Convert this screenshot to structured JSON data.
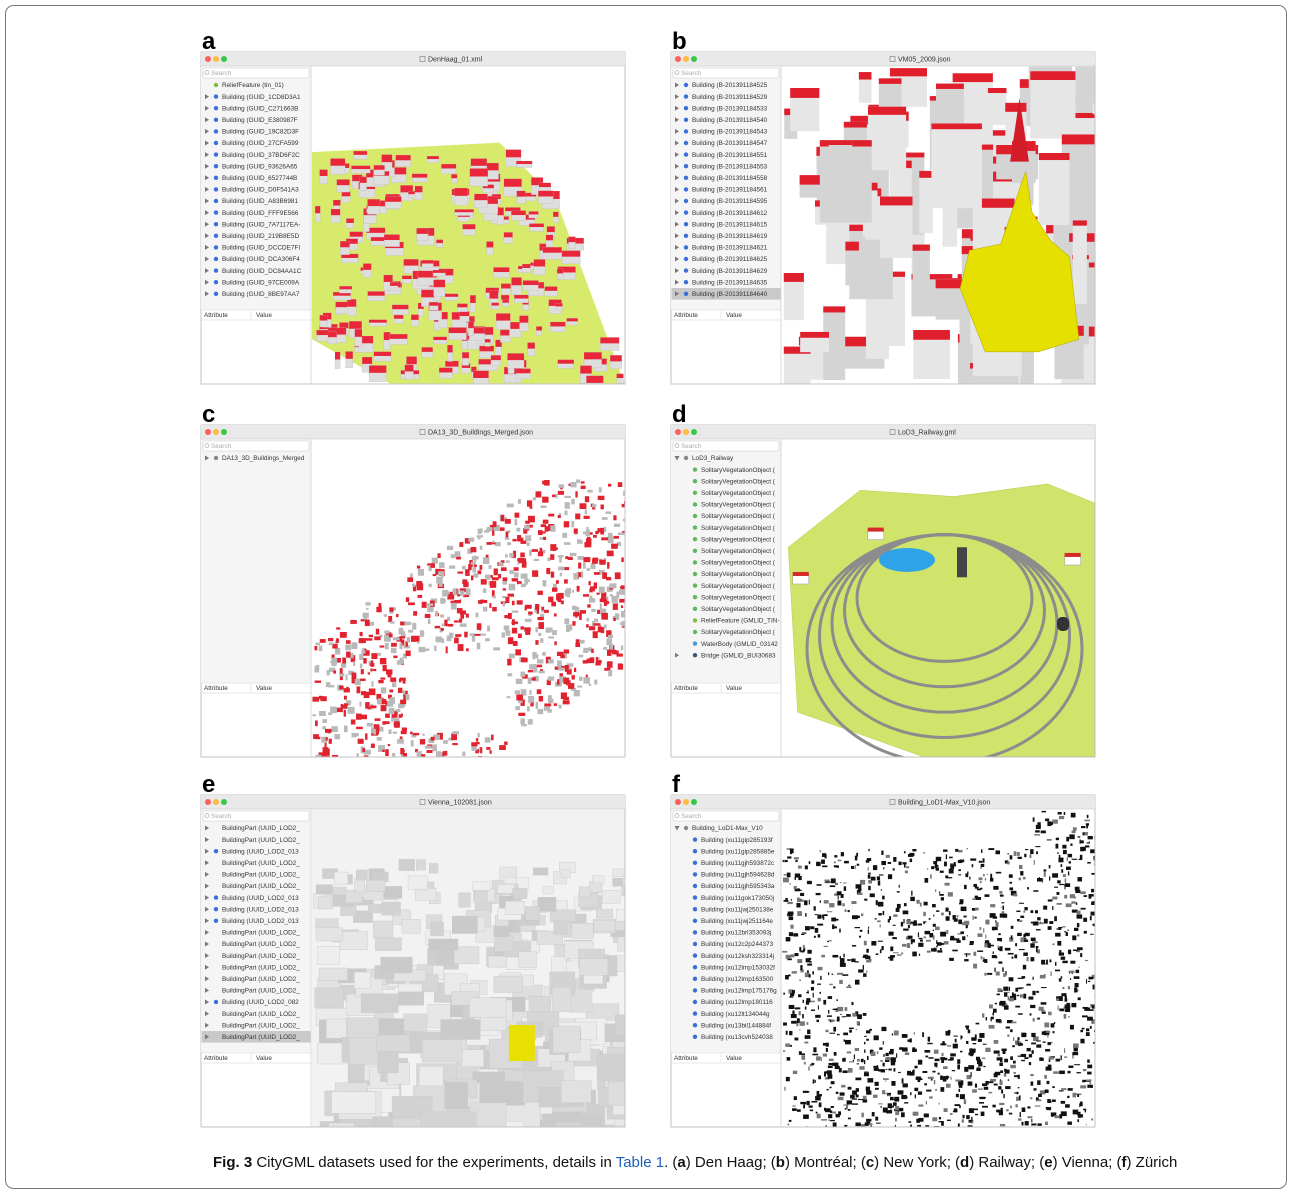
{
  "figure": {
    "panels": [
      {
        "label": "a",
        "window_title": "DenHaag_01.xml",
        "search": "Search",
        "attribute_header": "Attribute",
        "value_header": "Value",
        "tree": [
          {
            "text": "ReliefFeature (tin_01)",
            "icon": "#7bc043"
          },
          {
            "text": "Building (GUID_1CD8D3A1",
            "icon": "#3a6fd8",
            "arrow": "right"
          },
          {
            "text": "Building (GUID_C271663B",
            "icon": "#3a6fd8",
            "arrow": "right"
          },
          {
            "text": "Building (GUID_E380987F",
            "icon": "#3a6fd8",
            "arrow": "right"
          },
          {
            "text": "Building (GUID_19C82D3F",
            "icon": "#3a6fd8",
            "arrow": "right"
          },
          {
            "text": "Building (GUID_27CFA599",
            "icon": "#3a6fd8",
            "arrow": "right"
          },
          {
            "text": "Building (GUID_37BD6F2C",
            "icon": "#3a6fd8",
            "arrow": "right"
          },
          {
            "text": "Building (GUID_93626A65",
            "icon": "#3a6fd8",
            "arrow": "right"
          },
          {
            "text": "Building (GUID_6527744B",
            "icon": "#3a6fd8",
            "arrow": "right"
          },
          {
            "text": "Building (GUID_D0F541A3",
            "icon": "#3a6fd8",
            "arrow": "right"
          },
          {
            "text": "Building (GUID_A83B6981",
            "icon": "#3a6fd8",
            "arrow": "right"
          },
          {
            "text": "Building (GUID_FFF9E566",
            "icon": "#3a6fd8",
            "arrow": "right"
          },
          {
            "text": "Building (GUID_7A7117EA-",
            "icon": "#3a6fd8",
            "arrow": "right"
          },
          {
            "text": "Building (GUID_219B8E5D",
            "icon": "#3a6fd8",
            "arrow": "right"
          },
          {
            "text": "Building (GUID_DCCDE7FI",
            "icon": "#3a6fd8",
            "arrow": "right"
          },
          {
            "text": "Building (GUID_DCA306F4",
            "icon": "#3a6fd8",
            "arrow": "right"
          },
          {
            "text": "Building (GUID_DC84AA1C",
            "icon": "#3a6fd8",
            "arrow": "right"
          },
          {
            "text": "Building (GUID_97CE009A",
            "icon": "#3a6fd8",
            "arrow": "right"
          },
          {
            "text": "Building (GUID_8BE97AA7",
            "icon": "#3a6fd8",
            "arrow": "right"
          }
        ]
      },
      {
        "label": "b",
        "window_title": "VM05_2009.json",
        "search": "Search",
        "attribute_header": "Attribute",
        "value_header": "Value",
        "tree": [
          {
            "text": "Building (B-201391184525",
            "icon": "#3a6fd8",
            "arrow": "right"
          },
          {
            "text": "Building (B-201391184529",
            "icon": "#3a6fd8",
            "arrow": "right"
          },
          {
            "text": "Building (B-201391184533",
            "icon": "#3a6fd8",
            "arrow": "right"
          },
          {
            "text": "Building (B-201391184540",
            "icon": "#3a6fd8",
            "arrow": "right"
          },
          {
            "text": "Building (B-201391184543",
            "icon": "#3a6fd8",
            "arrow": "right"
          },
          {
            "text": "Building (B-201391184547",
            "icon": "#3a6fd8",
            "arrow": "right"
          },
          {
            "text": "Building (B-201391184551",
            "icon": "#3a6fd8",
            "arrow": "right"
          },
          {
            "text": "Building (B-201391184553",
            "icon": "#3a6fd8",
            "arrow": "right"
          },
          {
            "text": "Building (B-201391184558",
            "icon": "#3a6fd8",
            "arrow": "right"
          },
          {
            "text": "Building (B-201391184561",
            "icon": "#3a6fd8",
            "arrow": "right"
          },
          {
            "text": "Building (B-201391184595",
            "icon": "#3a6fd8",
            "arrow": "right"
          },
          {
            "text": "Building (B-201391184612",
            "icon": "#3a6fd8",
            "arrow": "right"
          },
          {
            "text": "Building (B-201391184615",
            "icon": "#3a6fd8",
            "arrow": "right"
          },
          {
            "text": "Building (B-201391184619",
            "icon": "#3a6fd8",
            "arrow": "right"
          },
          {
            "text": "Building (B-201391184621",
            "icon": "#3a6fd8",
            "arrow": "right"
          },
          {
            "text": "Building (B-201391184625",
            "icon": "#3a6fd8",
            "arrow": "right"
          },
          {
            "text": "Building (B-201391184629",
            "icon": "#3a6fd8",
            "arrow": "right"
          },
          {
            "text": "Building (B-201391184635",
            "icon": "#3a6fd8",
            "arrow": "right"
          },
          {
            "text": "Building (B-201391184640",
            "icon": "#3a6fd8",
            "arrow": "right",
            "selected": true
          }
        ]
      },
      {
        "label": "c",
        "window_title": "DA13_3D_Buildings_Merged.json",
        "search": "Search",
        "attribute_header": "Attribute",
        "value_header": "Value",
        "tree": [
          {
            "text": "DA13_3D_Buildings_Merged",
            "icon": "#888888",
            "arrow": "right"
          }
        ]
      },
      {
        "label": "d",
        "window_title": "LoD3_Railway.gml",
        "search": "Search",
        "attribute_header": "Attribute",
        "value_header": "Value",
        "tree": [
          {
            "text": "LoD3_Railway",
            "icon": "#888888",
            "arrow": "down"
          },
          {
            "text": "SolitaryVegetationObject (",
            "icon": "#5cb85c",
            "indent": 1
          },
          {
            "text": "SolitaryVegetationObject (",
            "icon": "#5cb85c",
            "indent": 1
          },
          {
            "text": "SolitaryVegetationObject (",
            "icon": "#5cb85c",
            "indent": 1
          },
          {
            "text": "SolitaryVegetationObject (",
            "icon": "#5cb85c",
            "indent": 1
          },
          {
            "text": "SolitaryVegetationObject (",
            "icon": "#5cb85c",
            "indent": 1
          },
          {
            "text": "SolitaryVegetationObject (",
            "icon": "#5cb85c",
            "indent": 1
          },
          {
            "text": "SolitaryVegetationObject (",
            "icon": "#5cb85c",
            "indent": 1
          },
          {
            "text": "SolitaryVegetationObject (",
            "icon": "#5cb85c",
            "indent": 1
          },
          {
            "text": "SolitaryVegetationObject (",
            "icon": "#5cb85c",
            "indent": 1
          },
          {
            "text": "SolitaryVegetationObject (",
            "icon": "#5cb85c",
            "indent": 1
          },
          {
            "text": "SolitaryVegetationObject (",
            "icon": "#5cb85c",
            "indent": 1
          },
          {
            "text": "SolitaryVegetationObject (",
            "icon": "#5cb85c",
            "indent": 1
          },
          {
            "text": "SolitaryVegetationObject (",
            "icon": "#5cb85c",
            "indent": 1
          },
          {
            "text": "ReliefFeature (GMLID_TIN-",
            "icon": "#7bc043",
            "indent": 1
          },
          {
            "text": "SolitaryVegetationObject (",
            "icon": "#5cb85c",
            "indent": 1
          },
          {
            "text": "WaterBody (GMLID_03142",
            "icon": "#3a9be8",
            "indent": 1
          },
          {
            "text": "Bridge (GMLID_BUI30683",
            "icon": "#445577",
            "arrow": "right",
            "indent": 1
          }
        ]
      },
      {
        "label": "e",
        "window_title": "Vienna_102081.json",
        "search": "Search",
        "attribute_header": "Attribute",
        "value_header": "Value",
        "tree": [
          {
            "text": "BuildingPart (UUID_LOD2_",
            "arrow": "right"
          },
          {
            "text": "BuildingPart (UUID_LOD2_",
            "arrow": "right"
          },
          {
            "text": "Building (UUID_LOD2_013",
            "icon": "#3a6fd8",
            "arrow": "right"
          },
          {
            "text": "BuildingPart (UUID_LOD2_",
            "arrow": "right"
          },
          {
            "text": "BuildingPart (UUID_LOD2_",
            "arrow": "right"
          },
          {
            "text": "BuildingPart (UUID_LOD2_",
            "arrow": "right"
          },
          {
            "text": "Building (UUID_LOD2_013",
            "icon": "#3a6fd8",
            "arrow": "right"
          },
          {
            "text": "Building (UUID_LOD2_013",
            "icon": "#3a6fd8",
            "arrow": "right"
          },
          {
            "text": "Building (UUID_LOD2_013",
            "icon": "#3a6fd8",
            "arrow": "right"
          },
          {
            "text": "BuildingPart (UUID_LOD2_",
            "arrow": "right"
          },
          {
            "text": "BuildingPart (UUID_LOD2_",
            "arrow": "right"
          },
          {
            "text": "BuildingPart (UUID_LOD2_",
            "arrow": "right"
          },
          {
            "text": "BuildingPart (UUID_LOD2_",
            "arrow": "right"
          },
          {
            "text": "BuildingPart (UUID_LOD2_",
            "arrow": "right"
          },
          {
            "text": "BuildingPart (UUID_LOD2_",
            "arrow": "right"
          },
          {
            "text": "Building (UUID_LOD2_082",
            "icon": "#3a6fd8",
            "arrow": "right"
          },
          {
            "text": "BuildingPart (UUID_LOD2_",
            "arrow": "right"
          },
          {
            "text": "BuildingPart (UUID_LOD2_",
            "arrow": "right"
          },
          {
            "text": "BuildingPart (UUID_LOD2_",
            "arrow": "right",
            "selected": true
          }
        ]
      },
      {
        "label": "f",
        "window_title": "Building_LoD1-Max_V10.json",
        "search": "Search",
        "attribute_header": "Attribute",
        "value_header": "Value",
        "tree": [
          {
            "text": "Building_LoD1-Max_V10",
            "icon": "#888888",
            "arrow": "down"
          },
          {
            "text": "Building (xu11gip285193f",
            "icon": "#3a6fd8",
            "indent": 1
          },
          {
            "text": "Building (xu11gip285885e",
            "icon": "#3a6fd8",
            "indent": 1
          },
          {
            "text": "Building (xu11gjh593872c",
            "icon": "#3a6fd8",
            "indent": 1
          },
          {
            "text": "Building (xu11gjh594628d",
            "icon": "#3a6fd8",
            "indent": 1
          },
          {
            "text": "Building (xu11gjh595343a",
            "icon": "#3a6fd8",
            "indent": 1
          },
          {
            "text": "Building (xu11gok173050j",
            "icon": "#3a6fd8",
            "indent": 1
          },
          {
            "text": "Building (xu11jwj250138e",
            "icon": "#3a6fd8",
            "indent": 1
          },
          {
            "text": "Building (xu11jwj251164e",
            "icon": "#3a6fd8",
            "indent": 1
          },
          {
            "text": "Building (xu12brl353093j",
            "icon": "#3a6fd8",
            "indent": 1
          },
          {
            "text": "Building (xu12c2p244373",
            "icon": "#3a6fd8",
            "indent": 1
          },
          {
            "text": "Building (xu12ksh323314j",
            "icon": "#3a6fd8",
            "indent": 1
          },
          {
            "text": "Building (xu12lmp153032f",
            "icon": "#3a6fd8",
            "indent": 1
          },
          {
            "text": "Building (xu12lmp163500",
            "icon": "#3a6fd8",
            "indent": 1
          },
          {
            "text": "Building (xu12lmp175176g",
            "icon": "#3a6fd8",
            "indent": 1
          },
          {
            "text": "Building (xu12lmp180116",
            "icon": "#3a6fd8",
            "indent": 1
          },
          {
            "text": "Building (xu12lt134044g",
            "icon": "#3a6fd8",
            "indent": 1
          },
          {
            "text": "Building (xu13bil144884f",
            "icon": "#3a6fd8",
            "indent": 1
          },
          {
            "text": "Building (xu13cvh524038",
            "icon": "#3a6fd8",
            "indent": 1
          }
        ]
      }
    ],
    "caption": {
      "runs": [
        {
          "text": "Fig. 3",
          "style": "bold"
        },
        {
          "text": " CityGML datasets used for the experiments, details in ",
          "style": "plain"
        },
        {
          "text": "Table 1",
          "style": "link"
        },
        {
          "text": ". (",
          "style": "plain"
        },
        {
          "text": "a",
          "style": "bold"
        },
        {
          "text": ") Den Haag; (",
          "style": "plain"
        },
        {
          "text": "b",
          "style": "bold"
        },
        {
          "text": ") Montréal; (",
          "style": "plain"
        },
        {
          "text": "c",
          "style": "bold"
        },
        {
          "text": ") New York; (",
          "style": "plain"
        },
        {
          "text": "d",
          "style": "bold"
        },
        {
          "text": ") Railway; (",
          "style": "plain"
        },
        {
          "text": "e",
          "style": "bold"
        },
        {
          "text": ") Vienna; (",
          "style": "plain"
        },
        {
          "text": "f",
          "style": "bold"
        },
        {
          "text": ") Zürich",
          "style": "plain"
        }
      ]
    }
  }
}
